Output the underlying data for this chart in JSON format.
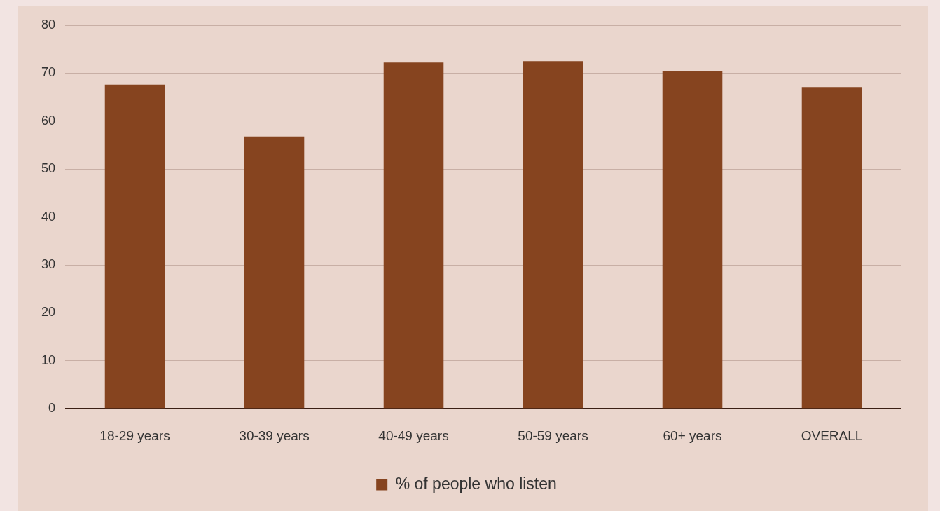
{
  "chart_data": {
    "type": "bar",
    "categories": [
      "18-29 years",
      "30-39 years",
      "40-49 years",
      "50-59 years",
      "60+ years",
      "OVERALL"
    ],
    "series": [
      {
        "name": "% of people who listen",
        "color": "#86441f",
        "values": [
          67.6,
          56.8,
          72.2,
          72.5,
          70.4,
          67.1
        ]
      }
    ],
    "ylim": [
      0,
      80
    ],
    "yticks": [
      0,
      10,
      20,
      30,
      40,
      50,
      60,
      70,
      80
    ],
    "grid": "y",
    "legend": "bottom"
  }
}
